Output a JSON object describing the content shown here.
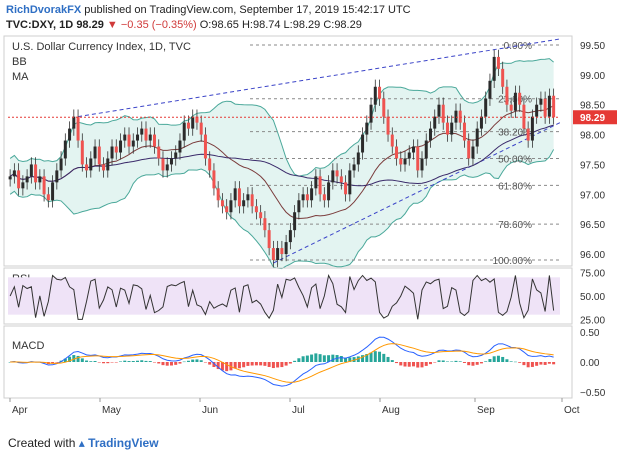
{
  "header": {
    "author": "RichDvorakFX",
    "published_text": "published on TradingView.com, September 17, 2019 15:42:17 UTC",
    "symbol": "TVC:DXY, 1D",
    "last": "98.29",
    "change": "▼ −0.35 (−0.35%)",
    "ohlc_open": "O:98.65",
    "ohlc_high": "H:98.74",
    "ohlc_low": "L:98.29",
    "ohlc_close": "C:98.29"
  },
  "footer": {
    "prefix": "Created with",
    "brand": "TradingView"
  },
  "colors": {
    "up": "#26a69a",
    "down": "#ef5350",
    "bb": "#4aa89a",
    "bb_fill": "#e3f4f1",
    "ma": "#7a3b3b",
    "trend": "#3b44c8",
    "fib": "#8a8a8a",
    "price_line": "#e53935",
    "rsi_fill": "#efe3f7",
    "macd_line": "#2962ff",
    "signal_line": "#ff9800"
  },
  "chart_data": [
    {
      "type": "candlestick",
      "title": "U.S. Dollar Currency Index, 1D, TVC",
      "indicators": [
        "BB",
        "MA"
      ],
      "x_ticks": [
        "Apr",
        "May",
        "Jun",
        "Jul",
        "Aug",
        "Sep",
        "Oct"
      ],
      "y_ticks": [
        "99.50",
        "99.00",
        "98.50",
        "98.00",
        "97.50",
        "97.00",
        "96.50",
        "96.00"
      ],
      "ylim": [
        95.8,
        99.65
      ],
      "last_price_label": "98.29",
      "fibonacci": [
        {
          "label": "0.00%",
          "value": 99.5
        },
        {
          "label": "23.60%",
          "value": 98.6
        },
        {
          "label": "38.20%",
          "value": 98.05
        },
        {
          "label": "50.00%",
          "value": 97.6
        },
        {
          "label": "61.80%",
          "value": 97.15
        },
        {
          "label": "78.60%",
          "value": 96.5
        },
        {
          "label": "100.00%",
          "value": 95.9
        }
      ],
      "trendlines": [
        {
          "from": [
            "Apr 24",
            98.3
          ],
          "to": [
            "Sep 16",
            99.55
          ]
        },
        {
          "from": [
            "Jun 25",
            95.85
          ],
          "to": [
            "Sep 16",
            98.2
          ]
        }
      ],
      "close_series": [
        97.3,
        97.4,
        97.1,
        97.2,
        97.3,
        97.5,
        97.2,
        97.3,
        97.0,
        96.9,
        97.2,
        97.4,
        97.6,
        97.9,
        98.1,
        98.3,
        97.9,
        97.5,
        97.4,
        97.6,
        97.8,
        97.5,
        97.4,
        97.6,
        97.8,
        97.7,
        97.9,
        98.0,
        97.8,
        97.9,
        98.0,
        98.1,
        97.9,
        98.0,
        97.8,
        97.6,
        97.4,
        97.5,
        97.6,
        97.7,
        97.9,
        98.2,
        98.1,
        98.3,
        98.2,
        98.0,
        97.6,
        97.4,
        97.1,
        96.9,
        96.8,
        96.7,
        96.9,
        97.1,
        96.8,
        96.9,
        97.0,
        96.8,
        96.7,
        96.6,
        96.4,
        96.1,
        95.9,
        96.1,
        96.0,
        96.2,
        96.4,
        96.7,
        96.9,
        97.0,
        96.9,
        97.1,
        97.3,
        97.0,
        96.9,
        97.2,
        97.4,
        97.3,
        97.2,
        97.0,
        97.4,
        97.5,
        97.7,
        98.0,
        98.2,
        98.5,
        98.8,
        98.6,
        98.3,
        98.0,
        97.8,
        97.6,
        97.5,
        97.6,
        97.7,
        97.8,
        97.4,
        97.6,
        97.9,
        98.1,
        98.3,
        98.5,
        98.2,
        98.0,
        98.2,
        98.4,
        98.2,
        97.9,
        97.6,
        97.8,
        98.1,
        98.3,
        98.6,
        98.9,
        99.3,
        99.1,
        98.8,
        98.5,
        98.4,
        98.7,
        98.5,
        98.1,
        97.9,
        98.3,
        98.5,
        98.6,
        98.3,
        98.65,
        98.29
      ],
      "macd_x_ticks": [
        "Apr",
        "May",
        "Jun",
        "Jul",
        "Aug",
        "Sep",
        "Oct"
      ]
    },
    {
      "type": "line",
      "title": "RSI",
      "y_ticks": [
        "75.00",
        "50.00",
        "25.00"
      ],
      "ylim": [
        20,
        80
      ]
    },
    {
      "type": "bar",
      "title": "MACD",
      "y_ticks": [
        "0.50",
        "0.00",
        "−0.50"
      ],
      "ylim": [
        -0.6,
        0.6
      ]
    }
  ]
}
